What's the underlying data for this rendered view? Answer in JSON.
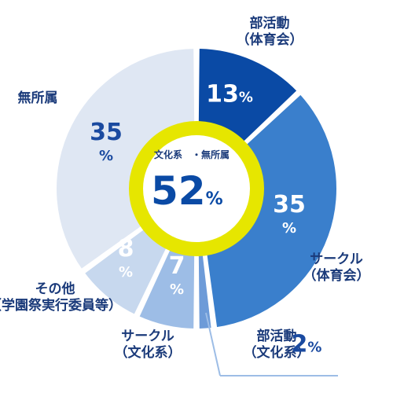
{
  "chart_data": {
    "type": "pie",
    "style": "donut",
    "slices": [
      {
        "label_lines": [
          "部活動",
          "（体育会）"
        ],
        "value": 13,
        "display": "13",
        "color": "#0a4aa5",
        "pct_color": "#ffffff"
      },
      {
        "label_lines": [
          "サークル",
          "（体育会）"
        ],
        "value": 35,
        "display": "35",
        "color": "#3a7fcc",
        "pct_color": "#ffffff"
      },
      {
        "label_lines": [
          "部活動",
          "（文化系）"
        ],
        "value": 2,
        "display": "2",
        "color": "#6d9bd8",
        "pct_color": "#1a4aa0"
      },
      {
        "label_lines": [
          "サークル",
          "（文化系）"
        ],
        "value": 7,
        "display": "7",
        "color": "#9dbde6",
        "pct_color": "#ffffff"
      },
      {
        "label_lines": [
          "その他",
          "（学園祭実行委員等）"
        ],
        "value": 8,
        "display": "8",
        "color": "#c7d8ee",
        "pct_color": "#ffffff"
      },
      {
        "label_lines": [
          "無所属"
        ],
        "value": 35,
        "display": "35",
        "color": "#dfe7f3",
        "pct_color": "#1a4aa0"
      }
    ],
    "percent_sign": "%",
    "center": {
      "label": "文化系　・無所属",
      "value": "52",
      "unit": "%"
    },
    "ring_color": "#e6e600"
  }
}
